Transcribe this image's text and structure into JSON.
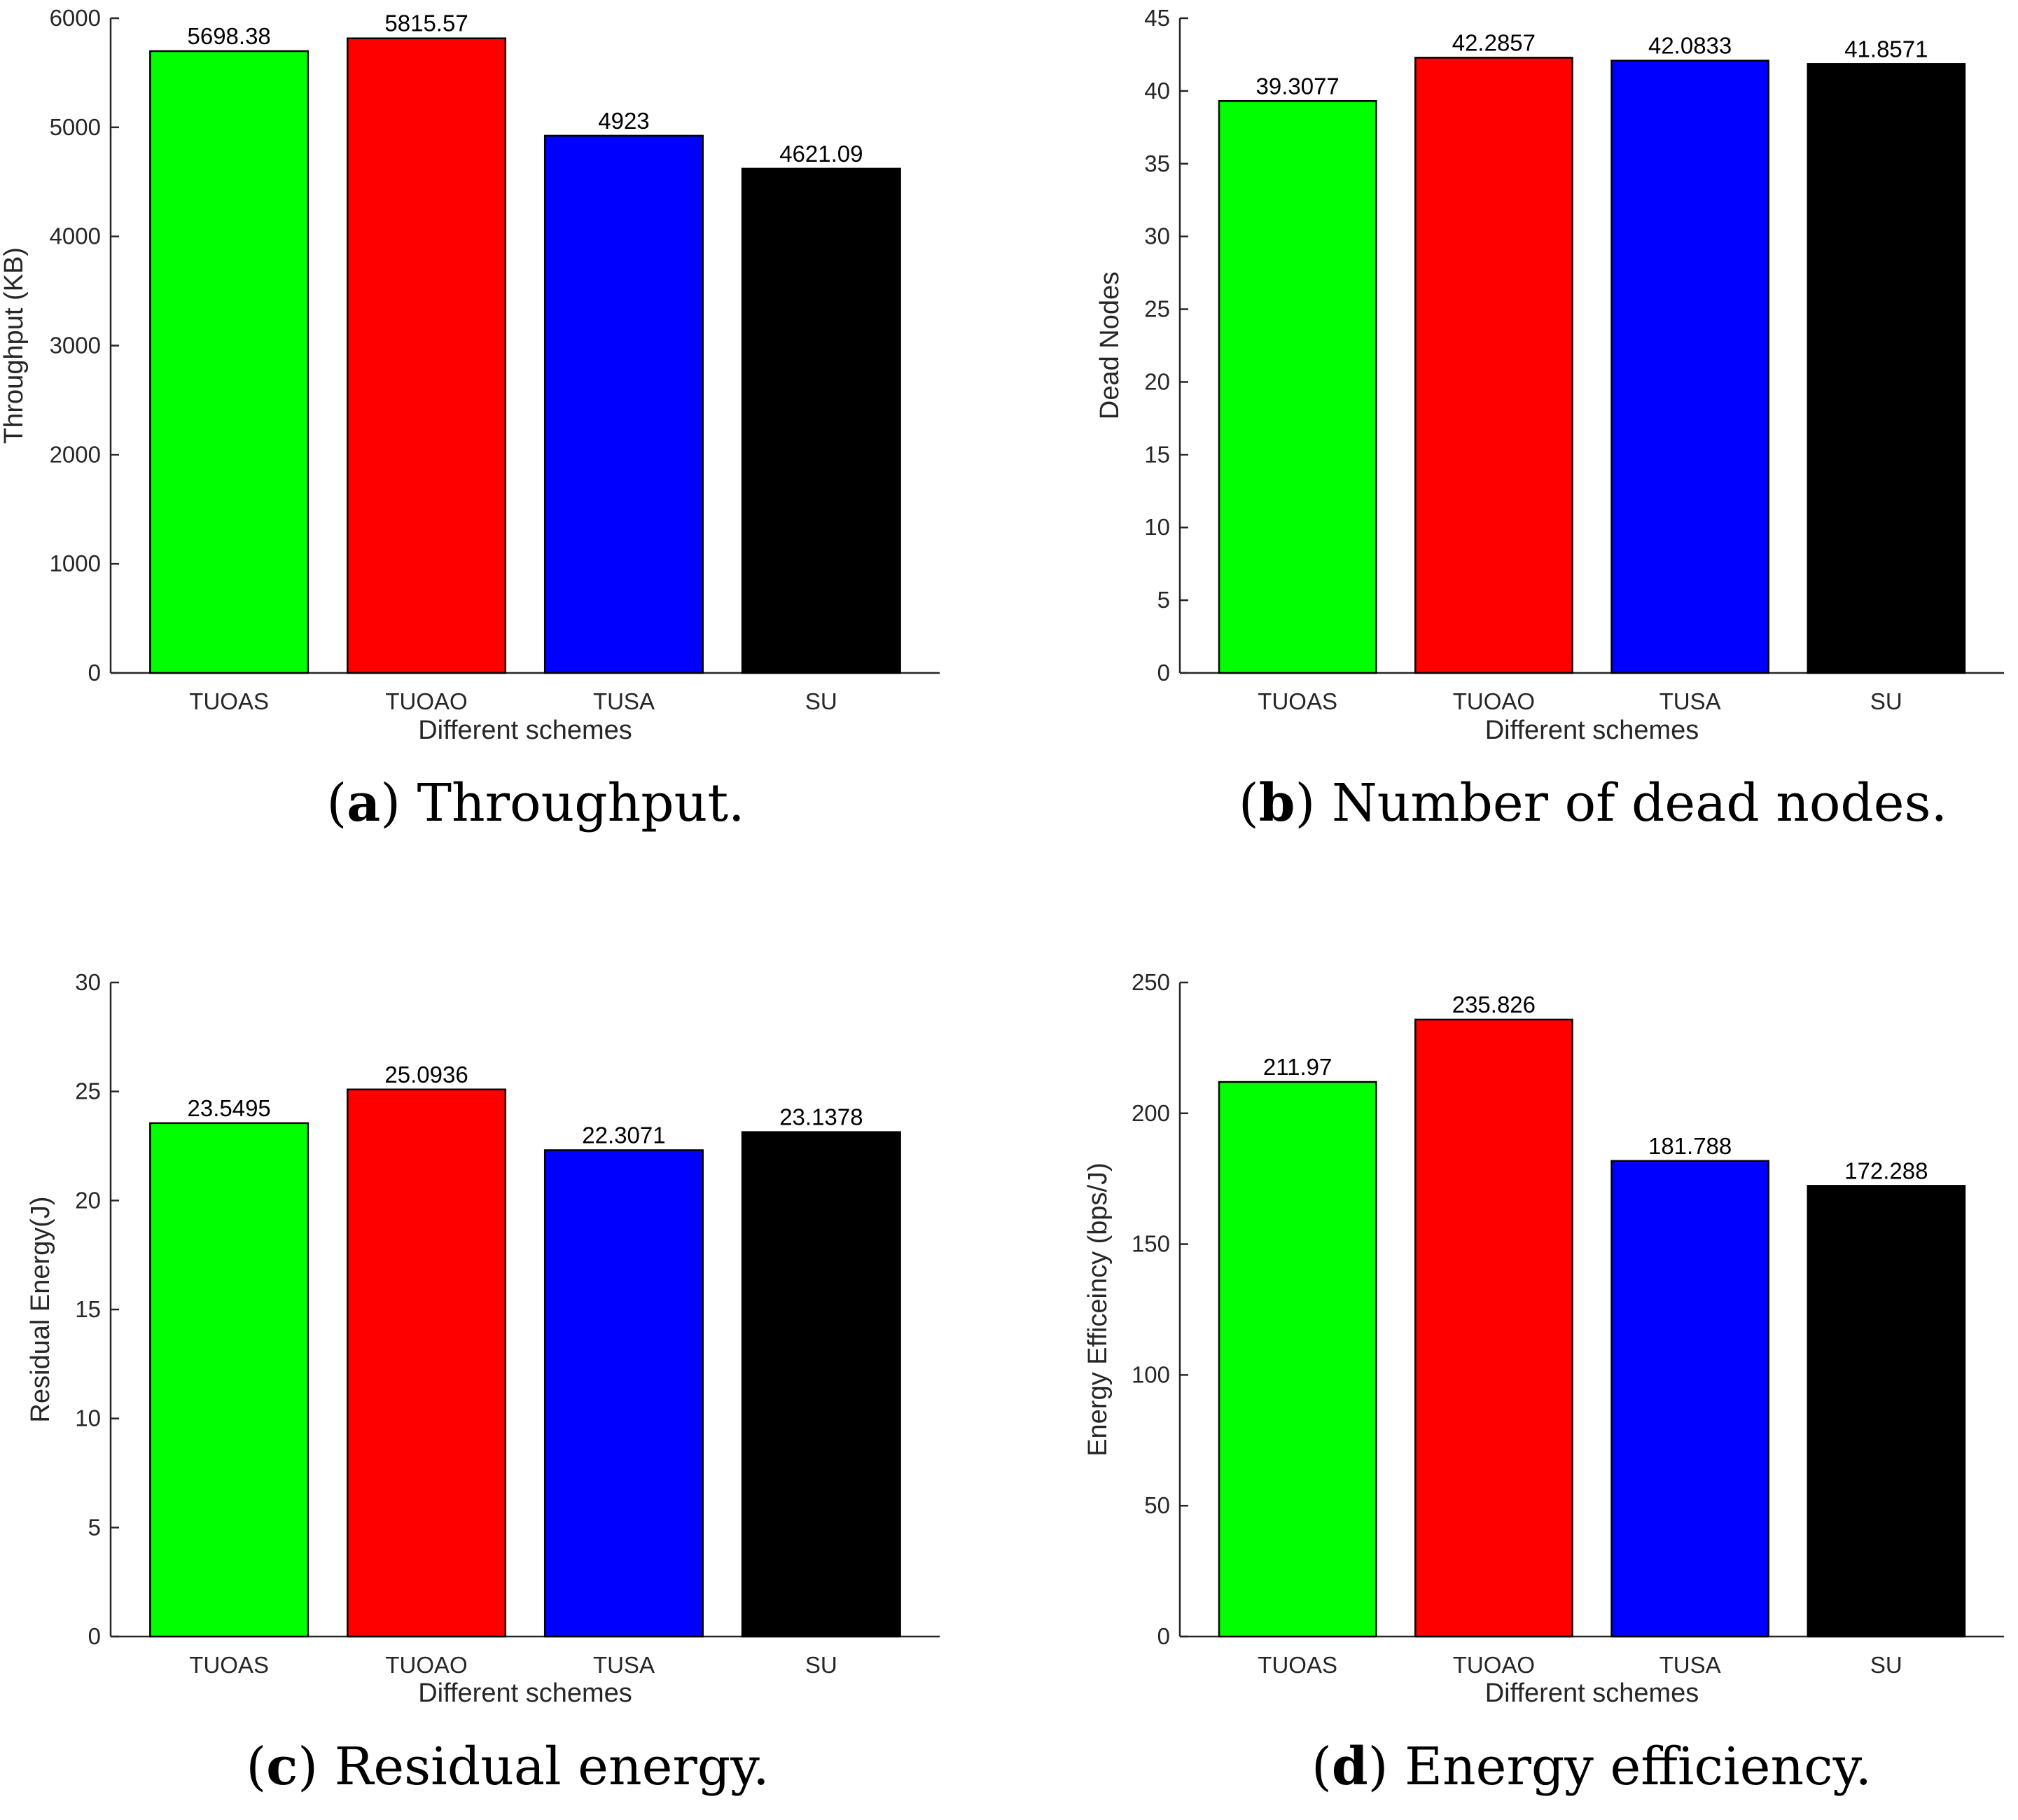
{
  "colors": {
    "TUOAS": "#00ff00",
    "TUOAO": "#ff0000",
    "TUSA": "#0000ff",
    "SU": "#000000"
  },
  "chart_data": [
    {
      "type": "bar",
      "panel": "a",
      "caption_letter": "a",
      "caption_text": "Throughput.",
      "categories": [
        "TUOAS",
        "TUOAO",
        "TUSA",
        "SU"
      ],
      "values": [
        5698.38,
        5815.57,
        4923,
        4621.09
      ],
      "value_labels": [
        "5698.38",
        "5815.57",
        "4923",
        "4621.09"
      ],
      "xlabel": "Different schemes",
      "ylabel": "Throughput (KB)",
      "ylim": [
        0,
        6000
      ],
      "yticks": [
        0,
        1000,
        2000,
        3000,
        4000,
        5000,
        6000
      ],
      "grid": false
    },
    {
      "type": "bar",
      "panel": "b",
      "caption_letter": "b",
      "caption_text": "Number of dead nodes.",
      "categories": [
        "TUOAS",
        "TUOAO",
        "TUSA",
        "SU"
      ],
      "values": [
        39.3077,
        42.2857,
        42.0833,
        41.8571
      ],
      "value_labels": [
        "39.3077",
        "42.2857",
        "42.0833",
        "41.8571"
      ],
      "xlabel": "Different schemes",
      "ylabel": "Dead Nodes",
      "ylim": [
        0,
        45
      ],
      "yticks": [
        0,
        5,
        10,
        15,
        20,
        25,
        30,
        35,
        40,
        45
      ],
      "grid": false
    },
    {
      "type": "bar",
      "panel": "c",
      "caption_letter": "c",
      "caption_text": "Residual energy.",
      "categories": [
        "TUOAS",
        "TUOAO",
        "TUSA",
        "SU"
      ],
      "values": [
        23.5495,
        25.0936,
        22.3071,
        23.1378
      ],
      "value_labels": [
        "23.5495",
        "25.0936",
        "22.3071",
        "23.1378"
      ],
      "xlabel": "Different schemes",
      "ylabel": "Residual Energy(J)",
      "ylim": [
        0,
        30
      ],
      "yticks": [
        0,
        5,
        10,
        15,
        20,
        25,
        30
      ],
      "grid": false
    },
    {
      "type": "bar",
      "panel": "d",
      "caption_letter": "d",
      "caption_text": "Energy efficiency.",
      "categories": [
        "TUOAS",
        "TUOAO",
        "TUSA",
        "SU"
      ],
      "values": [
        211.97,
        235.826,
        181.788,
        172.288
      ],
      "value_labels": [
        "211.97",
        "235.826",
        "181.788",
        "172.288"
      ],
      "xlabel": "Different schemes",
      "ylabel": "Energy Efficeincy (bps/J)",
      "ylim": [
        0,
        250
      ],
      "yticks": [
        0,
        50,
        100,
        150,
        200,
        250
      ],
      "grid": false
    }
  ]
}
